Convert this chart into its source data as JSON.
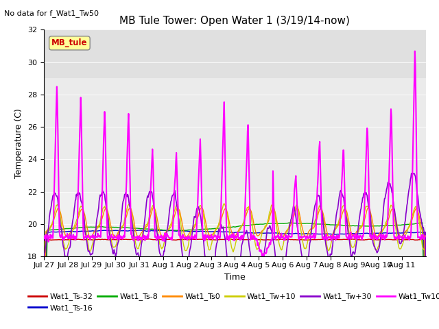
{
  "title": "MB Tule Tower: Open Water 1 (3/19/14-now)",
  "subtitle": "No data for f_Wat1_Tw50",
  "ylabel": "Temperature (C)",
  "xlabel": "Time",
  "ylim": [
    18,
    32
  ],
  "yticks": [
    18,
    20,
    22,
    24,
    26,
    28,
    30,
    32
  ],
  "shaded_band": [
    29,
    32
  ],
  "annotation_label": "MB_tule",
  "annotation_color": "#cc0000",
  "annotation_bg": "#ffff99",
  "series_colors": {
    "Wat1_Ts-32": "#cc0000",
    "Wat1_Ts-16": "#0000cc",
    "Wat1_Ts-8": "#00aa00",
    "Wat1_Ts0": "#ff8800",
    "Wat1_Tw+10": "#cccc00",
    "Wat1_Tw+30": "#8800cc",
    "Wat1_Tw100": "#ff00ff"
  },
  "xticklabels": [
    "Jul 27",
    "Jul 28",
    "Jul 29",
    "Jul 30",
    "Jul 31",
    "Aug 1",
    "Aug 2",
    "Aug 3",
    "Aug 4",
    "Aug 5",
    "Aug 6",
    "Aug 7",
    "Aug 8",
    "Aug 9",
    "Aug 10",
    "Aug 11"
  ],
  "figsize": [
    6.4,
    4.8
  ],
  "dpi": 100
}
